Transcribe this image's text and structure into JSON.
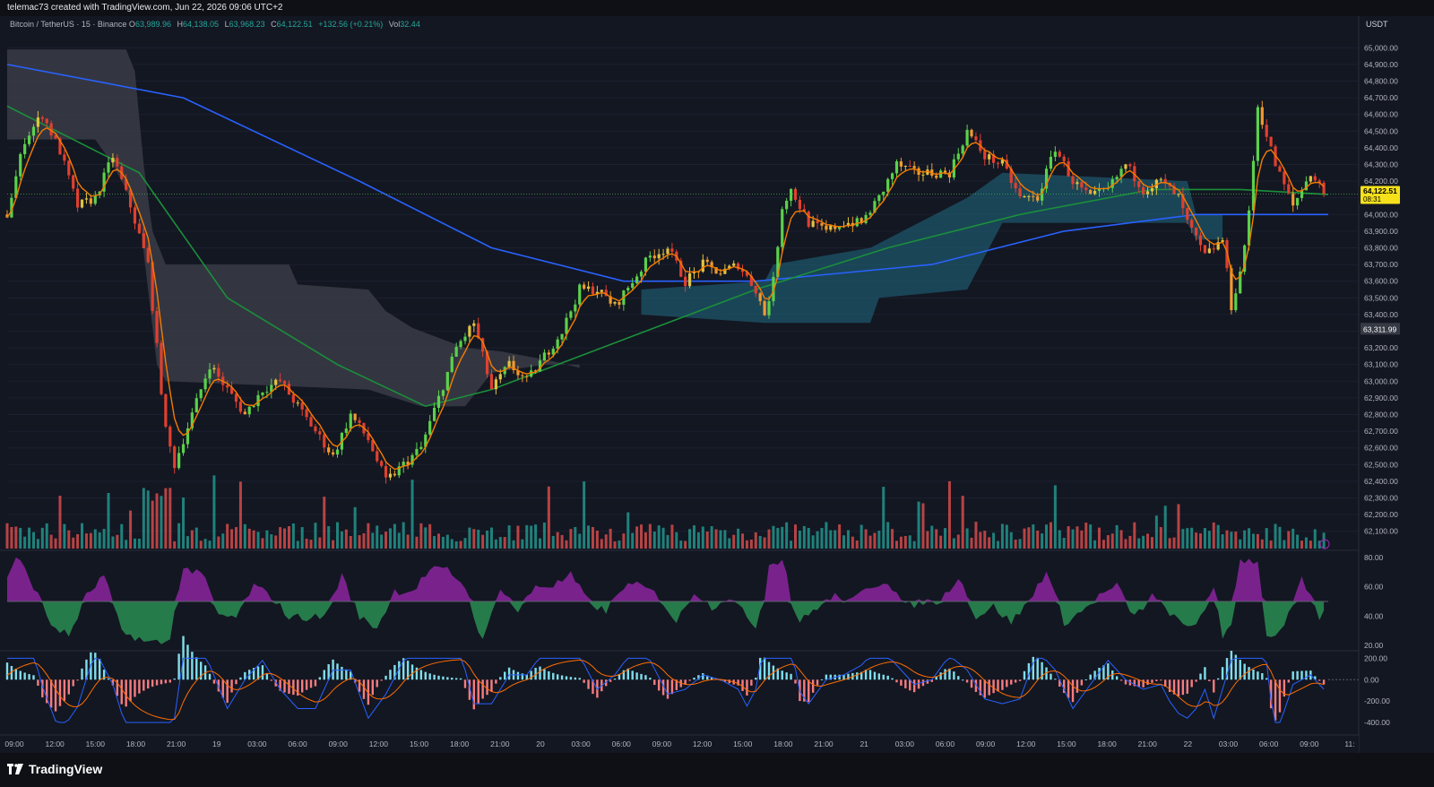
{
  "header": {
    "attribution": "telemac73 created with TradingView.com, Jun 22, 2026 09:06 UTC+2"
  },
  "legend": {
    "symbol": "Bitcoin / TetherUS · 15 · Binance",
    "open_label": "O",
    "open": "63,989.96",
    "high_label": "H",
    "high": "64,138.05",
    "low_label": "L",
    "low": "63,968.23",
    "close_label": "C",
    "close": "64,122.51",
    "change": "+132.56 (+0.21%)",
    "vol_label": "Vol",
    "vol": "32.44"
  },
  "price_axis": {
    "currency": "USDT",
    "current_price": "64,122.51",
    "countdown": "08:31",
    "marker_price": "63,311.99",
    "ticks": [
      "65,000.00",
      "64,900.00",
      "64,800.00",
      "64,700.00",
      "64,600.00",
      "64,500.00",
      "64,400.00",
      "64,300.00",
      "64,200.00",
      "64,100.00",
      "64,000.00",
      "63,900.00",
      "63,800.00",
      "63,700.00",
      "63,600.00",
      "63,500.00",
      "63,400.00",
      "63,300.00",
      "63,200.00",
      "63,100.00",
      "63,000.00",
      "62,900.00",
      "62,800.00",
      "62,700.00",
      "62,600.00",
      "62,500.00",
      "62,400.00",
      "62,300.00",
      "62,200.00",
      "62,100.00"
    ]
  },
  "rsi_axis": {
    "ticks": [
      "80.00",
      "60.00",
      "40.00",
      "20.00"
    ]
  },
  "macd_axis": {
    "ticks": [
      "200.00",
      "0.00",
      "-200.00",
      "-400.00"
    ]
  },
  "time_axis": {
    "labels": [
      "09:00",
      "12:00",
      "15:00",
      "18:00",
      "21:00",
      "19",
      "03:00",
      "06:00",
      "09:00",
      "12:00",
      "15:00",
      "18:00",
      "21:00",
      "20",
      "03:00",
      "06:00",
      "09:00",
      "12:00",
      "15:00",
      "18:00",
      "21:00",
      "21",
      "03:00",
      "06:00",
      "09:00",
      "12:00",
      "15:00",
      "18:00",
      "21:00",
      "22",
      "03:00",
      "06:00",
      "09:00",
      "11:"
    ]
  },
  "footer": {
    "brand": "TradingView"
  },
  "colors": {
    "background": "#131722",
    "up": "#26a69a",
    "down": "#ef5350",
    "bright_up": "#4caf50",
    "ma_long": "#2962ff",
    "ma_mid": "#1b8f3a",
    "ma_fast": "#f57c00",
    "price_badge": "#f5e11b",
    "rsi_bull": "#9c27b0",
    "rsi_bear": "#1b5e20"
  },
  "chart_data": {
    "type": "candlestick",
    "symbol": "Bitcoin / TetherUS",
    "interval": "15",
    "exchange": "Binance",
    "ylim": [
      62050,
      65050
    ],
    "last": 64122.51,
    "price_path": [
      [
        0,
        64000
      ],
      [
        4,
        64450
      ],
      [
        8,
        64600
      ],
      [
        12,
        64380
      ],
      [
        16,
        64050
      ],
      [
        20,
        64100
      ],
      [
        24,
        64350
      ],
      [
        28,
        64050
      ],
      [
        32,
        63700
      ],
      [
        34,
        63200
      ],
      [
        36,
        62700
      ],
      [
        38,
        62500
      ],
      [
        42,
        62800
      ],
      [
        46,
        63100
      ],
      [
        50,
        62950
      ],
      [
        54,
        62800
      ],
      [
        58,
        62950
      ],
      [
        62,
        63000
      ],
      [
        66,
        62850
      ],
      [
        70,
        62700
      ],
      [
        74,
        62550
      ],
      [
        78,
        62800
      ],
      [
        82,
        62650
      ],
      [
        86,
        62400
      ],
      [
        90,
        62500
      ],
      [
        94,
        62600
      ],
      [
        98,
        62900
      ],
      [
        102,
        63200
      ],
      [
        106,
        63350
      ],
      [
        110,
        62950
      ],
      [
        114,
        63100
      ],
      [
        118,
        63000
      ],
      [
        122,
        63150
      ],
      [
        126,
        63300
      ],
      [
        130,
        63550
      ],
      [
        134,
        63550
      ],
      [
        138,
        63450
      ],
      [
        142,
        63600
      ],
      [
        146,
        63750
      ],
      [
        150,
        63800
      ],
      [
        154,
        63600
      ],
      [
        158,
        63700
      ],
      [
        162,
        63650
      ],
      [
        166,
        63700
      ],
      [
        170,
        63550
      ],
      [
        172,
        63400
      ],
      [
        174,
        63600
      ],
      [
        176,
        64050
      ],
      [
        178,
        64150
      ],
      [
        182,
        63950
      ],
      [
        186,
        63900
      ],
      [
        190,
        63950
      ],
      [
        194,
        63950
      ],
      [
        198,
        64100
      ],
      [
        202,
        64300
      ],
      [
        206,
        64250
      ],
      [
        210,
        64250
      ],
      [
        214,
        64250
      ],
      [
        218,
        64500
      ],
      [
        222,
        64350
      ],
      [
        226,
        64300
      ],
      [
        230,
        64100
      ],
      [
        234,
        64100
      ],
      [
        238,
        64400
      ],
      [
        242,
        64200
      ],
      [
        246,
        64100
      ],
      [
        250,
        64150
      ],
      [
        254,
        64300
      ],
      [
        258,
        64150
      ],
      [
        262,
        64200
      ],
      [
        266,
        64100
      ],
      [
        268,
        63950
      ],
      [
        272,
        63750
      ],
      [
        276,
        63850
      ],
      [
        278,
        63450
      ],
      [
        280,
        63650
      ],
      [
        282,
        64000
      ],
      [
        284,
        64650
      ],
      [
        288,
        64300
      ],
      [
        292,
        64050
      ],
      [
        296,
        64250
      ],
      [
        300,
        64100
      ]
    ],
    "moving_averages": [
      {
        "color": "#2962ff",
        "points": [
          [
            0,
            64900
          ],
          [
            40,
            64700
          ],
          [
            80,
            64200
          ],
          [
            110,
            63800
          ],
          [
            140,
            63600
          ],
          [
            170,
            63600
          ],
          [
            210,
            63700
          ],
          [
            240,
            63900
          ],
          [
            270,
            64000
          ],
          [
            300,
            64000
          ]
        ]
      },
      {
        "color": "#1b8f3a",
        "points": [
          [
            0,
            64650
          ],
          [
            30,
            64250
          ],
          [
            50,
            63500
          ],
          [
            75,
            63100
          ],
          [
            95,
            62850
          ],
          [
            110,
            62950
          ],
          [
            140,
            63250
          ],
          [
            170,
            63550
          ],
          [
            200,
            63800
          ],
          [
            230,
            64000
          ],
          [
            260,
            64150
          ],
          [
            280,
            64150
          ],
          [
            300,
            64120
          ]
        ]
      }
    ],
    "rsi": {
      "ylim": [
        20,
        80
      ],
      "midline": 50
    },
    "macd": {
      "ylim": [
        -450,
        220
      ]
    }
  }
}
